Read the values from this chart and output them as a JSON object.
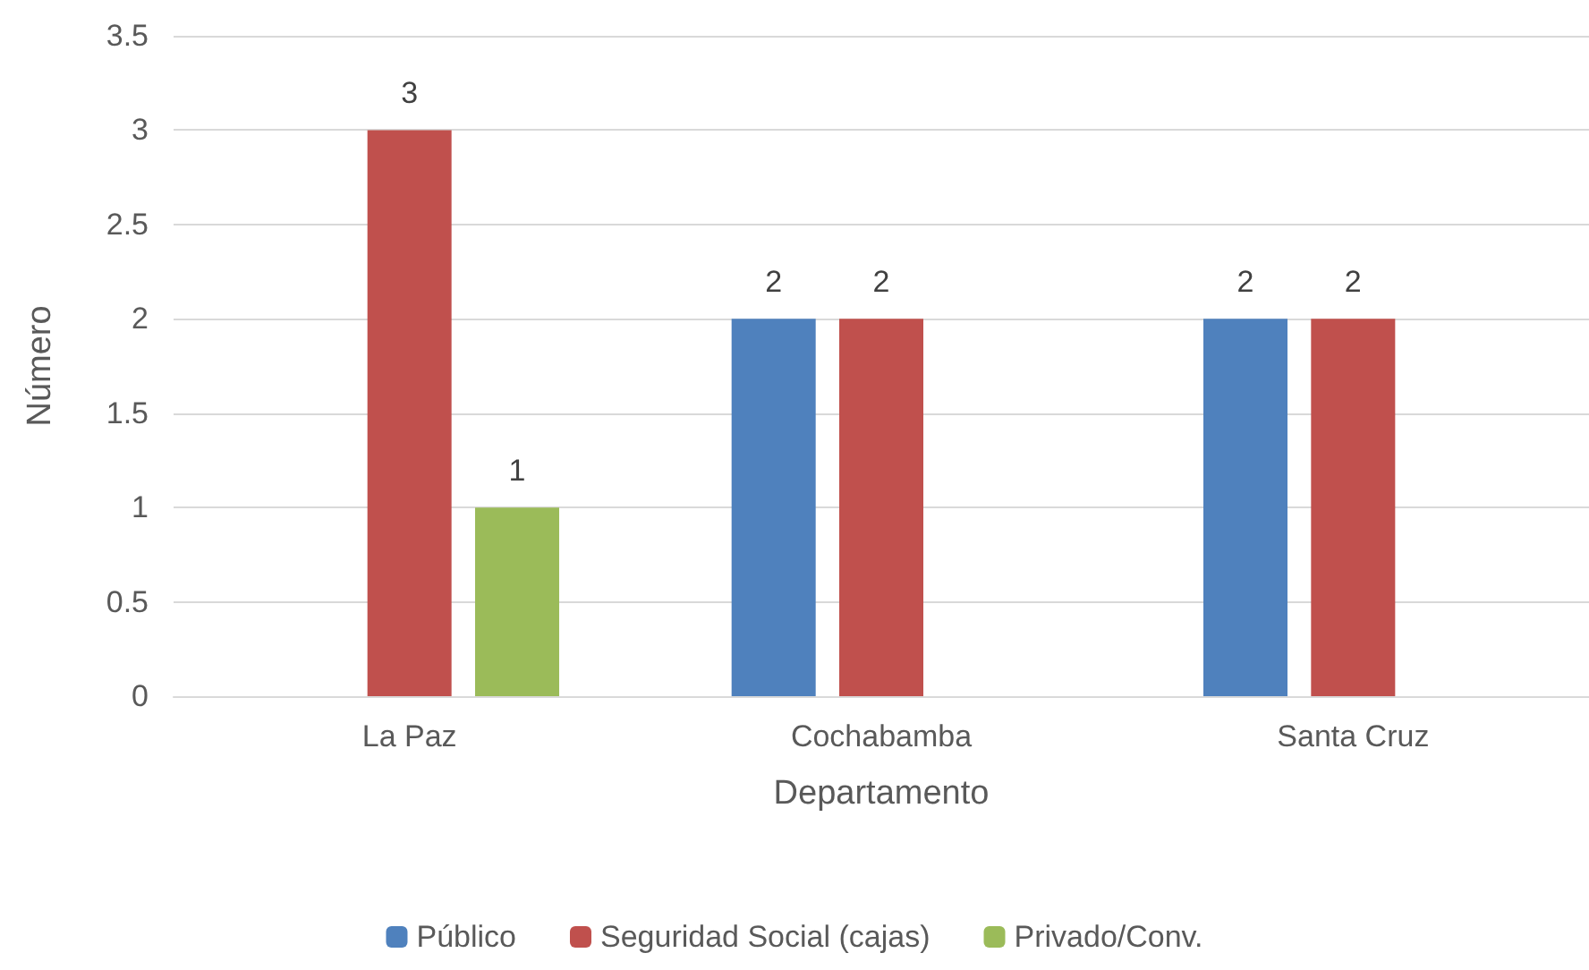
{
  "chart_data": {
    "type": "bar",
    "xlabel": "Departamento",
    "ylabel": "Número",
    "categories": [
      "La Paz",
      "Cochabamba",
      "Santa Cruz"
    ],
    "series": [
      {
        "name": "Público",
        "color": "#4f81bd",
        "values": [
          null,
          2,
          2
        ]
      },
      {
        "name": "Seguridad Social (cajas)",
        "color": "#c0504d",
        "values": [
          3,
          2,
          2
        ]
      },
      {
        "name": "Privado/Conv.",
        "color": "#9bbb59",
        "values": [
          1,
          null,
          null
        ]
      }
    ],
    "ylim": [
      0,
      3.5
    ],
    "yticks": [
      0,
      0.5,
      1,
      1.5,
      2,
      2.5,
      3,
      3.5
    ],
    "grid": "y",
    "legend": "bottom",
    "data_labels": true
  }
}
